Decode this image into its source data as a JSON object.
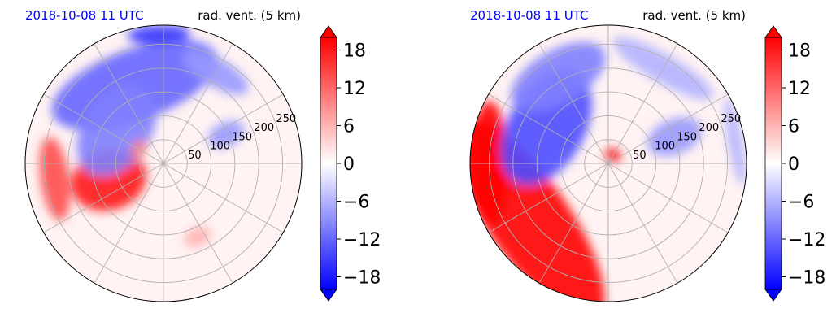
{
  "chart_data": [
    {
      "type": "heatmap",
      "title_left": "2018-10-08 11 UTC",
      "title_right": "rad. vent. (5 km)",
      "projection": "polar",
      "radial_ticks": [
        50,
        100,
        150,
        200,
        250
      ],
      "radial_max": 290,
      "grid": true,
      "colorbar": {
        "ticks": [
          18,
          12,
          6,
          0,
          -6,
          -12,
          -18
        ],
        "tick_labels": [
          "18",
          "12",
          "6",
          "0",
          "−6",
          "−12",
          "−18"
        ],
        "range": [
          -20,
          20
        ],
        "extend": "both"
      },
      "colors": {
        "positive": "#ff0000",
        "negative": "#0000ff",
        "neutral": "#ffffff",
        "date": "#0000ff"
      },
      "features": [
        {
          "value": 18,
          "r": 120,
          "theta": 197,
          "extent_r": 160,
          "extent_theta": 30
        },
        {
          "value": 14,
          "r": 230,
          "theta": 188,
          "extent_r": 60,
          "extent_theta": 22
        },
        {
          "value": -12,
          "r": 175,
          "theta": 110,
          "extent_r": 150,
          "extent_theta": 60
        },
        {
          "value": -10,
          "r": 120,
          "theta": 145,
          "extent_r": 140,
          "extent_theta": 50
        },
        {
          "value": -16,
          "r": 270,
          "theta": 92,
          "extent_r": 40,
          "extent_theta": 14
        },
        {
          "value": -8,
          "r": 220,
          "theta": 60,
          "extent_r": 60,
          "extent_theta": 20
        },
        {
          "value": 10,
          "r": 60,
          "theta": 150,
          "extent_r": 30,
          "extent_theta": 20
        },
        {
          "value": 6,
          "r": 170,
          "theta": 295,
          "extent_r": 40,
          "extent_theta": 10
        },
        {
          "value": -8,
          "r": 145,
          "theta": 25,
          "extent_r": 80,
          "extent_theta": 10
        }
      ]
    },
    {
      "type": "heatmap",
      "title_left": "2018-10-08 11 UTC",
      "title_right": "rad. vent. (5 km)",
      "projection": "polar",
      "radial_ticks": [
        50,
        100,
        150,
        200,
        250
      ],
      "radial_max": 290,
      "grid": true,
      "colorbar": {
        "ticks": [
          18,
          12,
          6,
          0,
          -6,
          -12,
          -18
        ],
        "tick_labels": [
          "18",
          "12",
          "6",
          "0",
          "−6",
          "−12",
          "−18"
        ],
        "range": [
          -20,
          20
        ],
        "extend": "both"
      },
      "colors": {
        "positive": "#ff0000",
        "negative": "#0000ff",
        "neutral": "#ffffff",
        "date": "#0000ff"
      },
      "features": [
        {
          "value": 20,
          "r": 205,
          "theta": 215,
          "extent_r": 170,
          "extent_theta": 70
        },
        {
          "value": 20,
          "r": 250,
          "theta": 180,
          "extent_r": 80,
          "extent_theta": 30
        },
        {
          "value": -14,
          "r": 150,
          "theta": 150,
          "extent_r": 160,
          "extent_theta": 50
        },
        {
          "value": -10,
          "r": 210,
          "theta": 120,
          "extent_r": 110,
          "extent_theta": 30
        },
        {
          "value": -8,
          "r": 150,
          "theta": 22,
          "extent_r": 120,
          "extent_theta": 14
        },
        {
          "value": -6,
          "r": 230,
          "theta": 60,
          "extent_r": 60,
          "extent_theta": 30
        },
        {
          "value": 20,
          "r": 20,
          "theta": 60,
          "extent_r": 25,
          "extent_theta": 50
        },
        {
          "value": -6,
          "r": 270,
          "theta": 10,
          "extent_r": 30,
          "extent_theta": 20
        }
      ]
    }
  ]
}
